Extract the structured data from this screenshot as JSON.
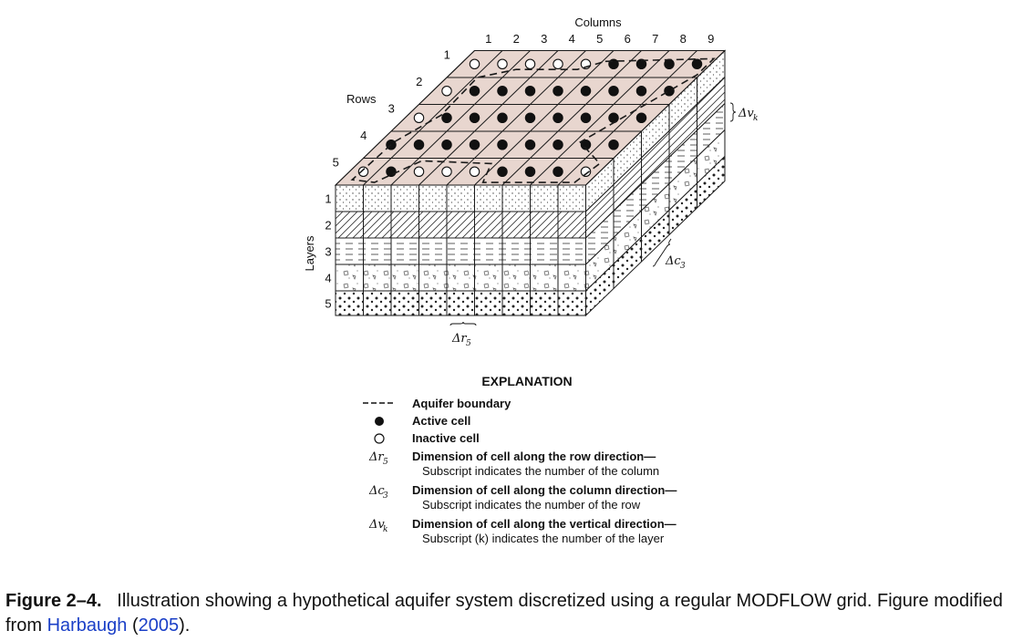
{
  "diagram": {
    "columns_title": "Columns",
    "column_numbers": [
      "1",
      "2",
      "3",
      "4",
      "5",
      "6",
      "7",
      "8",
      "9"
    ],
    "rows_title": "Rows",
    "row_numbers": [
      "1",
      "2",
      "3",
      "4",
      "5"
    ],
    "layers_title": "Layers",
    "layer_numbers": [
      "1",
      "2",
      "3",
      "4",
      "5"
    ],
    "dim_row_symbol": "Δr",
    "dim_row_subscript": "5",
    "dim_col_symbol": "Δc",
    "dim_col_subscript": "3",
    "dim_vert_symbol": "Δv",
    "dim_vert_subscript": "k",
    "active_cells": [
      [
        0,
        0,
        0,
        0,
        0,
        1,
        1,
        1,
        1
      ],
      [
        0,
        1,
        1,
        1,
        1,
        1,
        1,
        1,
        1
      ],
      [
        0,
        1,
        1,
        1,
        1,
        1,
        1,
        1,
        1
      ],
      [
        1,
        1,
        1,
        1,
        1,
        1,
        1,
        1,
        1
      ],
      [
        0,
        1,
        0,
        0,
        0,
        1,
        1,
        1,
        0
      ]
    ],
    "colors": {
      "top_face": "#e8d6cf",
      "line": "#1a1a1a",
      "aquifer_boundary": "#1a1a1a"
    }
  },
  "explanation": {
    "title": "EXPLANATION",
    "items": [
      {
        "symbol_type": "dashed-line",
        "symbol": "----",
        "title": "Aquifer boundary",
        "detail": ""
      },
      {
        "symbol_type": "filled-circle",
        "symbol": "●",
        "title": "Active cell",
        "detail": ""
      },
      {
        "symbol_type": "open-circle",
        "symbol": "○",
        "title": "Inactive cell",
        "detail": ""
      },
      {
        "symbol_type": "text",
        "symbol": "Δr",
        "symbol_sub": "5",
        "title": "Dimension of cell along the row direction—",
        "detail": "Subscript indicates the number of the column"
      },
      {
        "symbol_type": "text",
        "symbol": "Δc",
        "symbol_sub": "3",
        "title": "Dimension of cell along the column direction—",
        "detail": "Subscript indicates the number of the row"
      },
      {
        "symbol_type": "text",
        "symbol": "Δv",
        "symbol_sub": "k",
        "title": "Dimension of cell along the vertical direction—",
        "detail": "Subscript (k) indicates the number of the layer"
      }
    ]
  },
  "caption": {
    "figure_label": "Figure 2–4.",
    "text_before_link": "Illustration showing a hypothetical aquifer system discretized using a regular MODFLOW grid. Figure modified from",
    "link_text": "Harbaugh",
    "link_year": "2005",
    "text_after_link": "."
  }
}
